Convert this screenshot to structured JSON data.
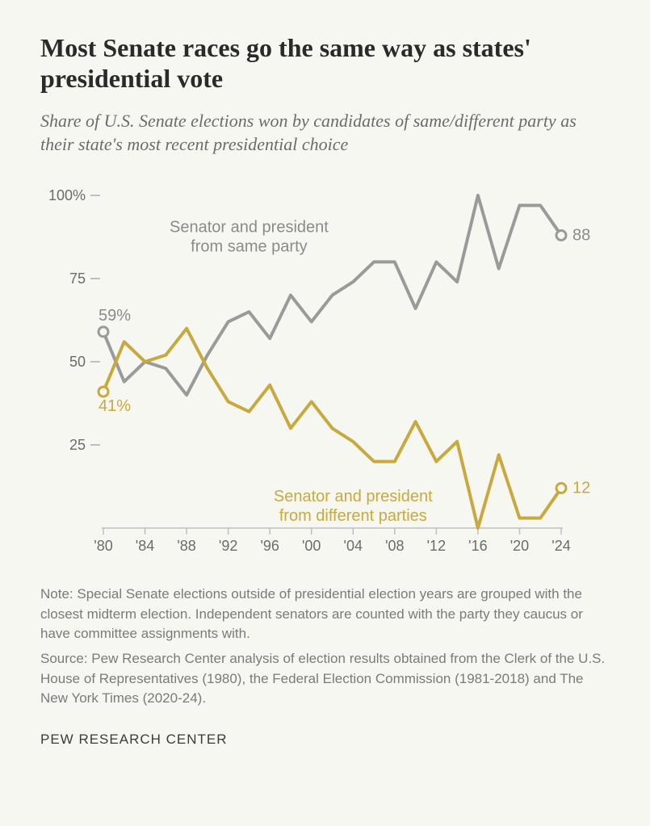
{
  "title": "Most Senate races go the same way as states' presidential vote",
  "subtitle": "Share of U.S. Senate elections won by candidates of same/different party as their state's most recent presidential choice",
  "note": "Note: Special Senate elections outside of presidential election years are grouped with the closest midterm election. Independent senators are counted with the party they caucus or have committee assignments with.",
  "source": "Source: Pew Research Center analysis of election results obtained from the Clerk of the U.S. House of Representatives (1980), the Federal Election Commission (1981-2018) and The New York Times (2020-24).",
  "footer": "PEW RESEARCH CENTER",
  "chart": {
    "type": "line",
    "background_color": "#f7f7f2",
    "axis_color": "#bfbfbf",
    "tick_color": "#bfbfbf",
    "tick_font_color": "#6b6b6b",
    "tick_fontsize": 18,
    "line_width": 4,
    "ylim": [
      0,
      100
    ],
    "yticks": [
      25,
      50,
      75,
      100
    ],
    "ytick_labels": [
      "25",
      "50",
      "75",
      "100%"
    ],
    "xticks": [
      1980,
      1984,
      1988,
      1992,
      1996,
      2000,
      2004,
      2008,
      2012,
      2016,
      2020,
      2024
    ],
    "xtick_labels": [
      "'80",
      "'84",
      "'88",
      "'92",
      "'96",
      "'00",
      "'04",
      "'08",
      "'12",
      "'16",
      "'20",
      "'24"
    ],
    "years": [
      1980,
      1982,
      1984,
      1986,
      1988,
      1990,
      1992,
      1994,
      1996,
      1998,
      2000,
      2002,
      2004,
      2006,
      2008,
      2010,
      2012,
      2014,
      2016,
      2018,
      2020,
      2022,
      2024
    ],
    "series": {
      "same": {
        "label": "Senator and president from same party",
        "color": "#9a9a9a",
        "text_color": "#8a8a8a",
        "values": [
          59,
          44,
          50,
          48,
          40,
          52,
          62,
          65,
          57,
          70,
          62,
          70,
          74,
          80,
          80,
          66,
          80,
          74,
          100,
          78,
          97,
          97,
          88
        ],
        "start_label": "59%",
        "end_label": "88",
        "label_x": 1994,
        "label_y": 89,
        "marker_fill": "#f7f7f2"
      },
      "diff": {
        "label": "Senator and president from different parties",
        "color": "#c8a93e",
        "text_color": "#c8a93e",
        "values": [
          41,
          56,
          50,
          52,
          60,
          48,
          38,
          35,
          43,
          30,
          38,
          30,
          26,
          20,
          20,
          32,
          20,
          26,
          0,
          22,
          3,
          3,
          12
        ],
        "start_label": "41%",
        "end_label": "12",
        "label_x": 2004,
        "label_y": 8,
        "marker_fill": "#f7f7f2"
      }
    },
    "annotation_fontsize": 20,
    "endpoint_marker_radius": 6
  }
}
